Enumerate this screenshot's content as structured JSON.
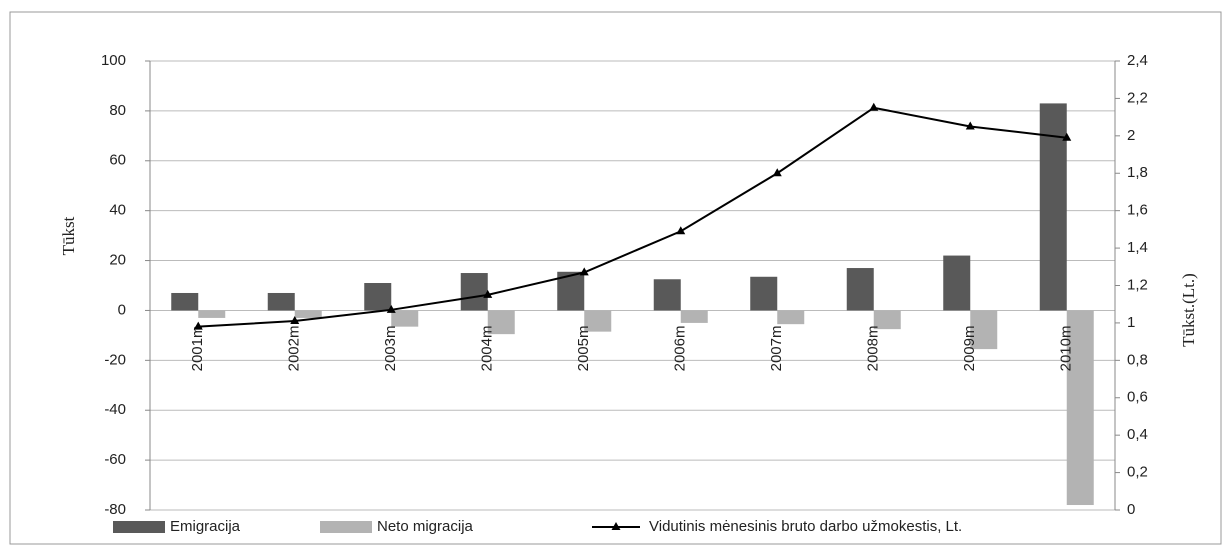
{
  "chart_data": {
    "type": "bar",
    "categories": [
      "2001m",
      "2002m",
      "2003m",
      "2004m",
      "2005m",
      "2006m",
      "2007m",
      "2008m",
      "2009m",
      "2010m"
    ],
    "series": [
      {
        "name": "Emigracija",
        "color": "#595959",
        "values": [
          7,
          7,
          11,
          15,
          15.5,
          12.5,
          13.5,
          17,
          22,
          83
        ]
      },
      {
        "name": "Neto migracija",
        "color": "#b3b3b3",
        "values": [
          -3,
          -3,
          -6.5,
          -9.5,
          -8.5,
          -5,
          -5.5,
          -7.5,
          -15.5,
          -78
        ]
      },
      {
        "name": "Vidutinis mėnesinis bruto darbo užmokestis, Lt.",
        "color": "#000000",
        "type": "line",
        "axis": "y2",
        "values": [
          0.98,
          1.01,
          1.07,
          1.15,
          1.27,
          1.49,
          1.8,
          2.15,
          2.05,
          1.99
        ]
      }
    ],
    "ylabel": "Tūkst",
    "y2label": "Tūkst.(Lt.)",
    "ylim": [
      -80,
      100
    ],
    "yticks": [
      -80,
      -60,
      -40,
      -20,
      0,
      20,
      40,
      60,
      80,
      100
    ],
    "y2lim": [
      0,
      2.4
    ],
    "y2ticks": [
      0,
      {
        "value": 0.2,
        "label": "0,2"
      },
      {
        "value": 0.4,
        "label": "0,4"
      },
      {
        "value": 0.6,
        "label": "0,6"
      },
      {
        "value": 0.8,
        "label": "0,8"
      },
      1,
      {
        "value": 1.2,
        "label": "1,2"
      },
      {
        "value": 1.4,
        "label": "1,4"
      },
      {
        "value": 1.6,
        "label": "1,6"
      },
      {
        "value": 1.8,
        "label": "1,8"
      },
      2,
      {
        "value": 2.2,
        "label": "2,2"
      },
      {
        "value": 2.4,
        "label": "2,4"
      }
    ],
    "grid": true,
    "legend": "bottom"
  }
}
